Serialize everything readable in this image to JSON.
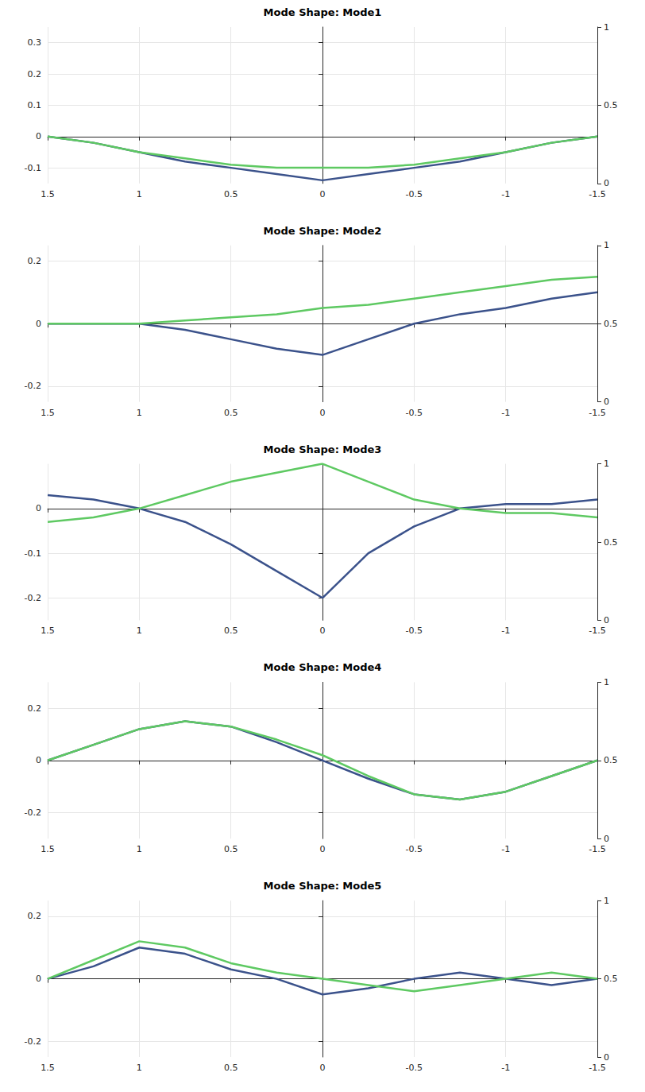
{
  "chart_data": [
    {
      "type": "line",
      "title": "Mode Shape: Mode1",
      "x": [
        1.5,
        1.25,
        1,
        0.75,
        0.5,
        0.25,
        0,
        -0.25,
        -0.5,
        -0.75,
        -1,
        -1.25,
        -1.5
      ],
      "series": [
        {
          "y": 0,
          "color": "#3b528b",
          "values": [
            0,
            -0.02,
            -0.05,
            -0.08,
            -0.1,
            -0.12,
            -0.14,
            -0.12,
            -0.1,
            -0.08,
            -0.05,
            -0.02,
            0
          ]
        },
        {
          "y": 1,
          "color": "#5ec962",
          "values": [
            0,
            -0.02,
            -0.05,
            -0.07,
            -0.09,
            -0.1,
            -0.1,
            -0.1,
            -0.09,
            -0.07,
            -0.05,
            -0.02,
            0
          ]
        }
      ],
      "xlim": [
        1.5,
        -1.5
      ],
      "xticks": [
        1.5,
        1,
        0.5,
        0,
        -0.5,
        -1,
        -1.5
      ],
      "ylim": [
        -0.15,
        0.35
      ],
      "yticks": [
        -0.1,
        0,
        0.1,
        0.2,
        0.3
      ],
      "depth_lim": [
        0,
        1
      ],
      "depth_ticks": [
        0,
        0.5,
        1
      ],
      "grid": true
    },
    {
      "type": "line",
      "title": "Mode Shape: Mode2",
      "x": [
        1.5,
        1.25,
        1,
        0.75,
        0.5,
        0.25,
        0,
        -0.25,
        -0.5,
        -0.75,
        -1,
        -1.25,
        -1.5
      ],
      "series": [
        {
          "y": 0,
          "color": "#3b528b",
          "values": [
            0,
            0,
            0,
            -0.02,
            -0.05,
            -0.08,
            -0.1,
            -0.05,
            0,
            0.03,
            0.05,
            0.08,
            0.1
          ]
        },
        {
          "y": 1,
          "color": "#5ec962",
          "values": [
            0,
            0,
            0,
            0.01,
            0.02,
            0.03,
            0.05,
            0.06,
            0.08,
            0.1,
            0.12,
            0.14,
            0.15
          ]
        }
      ],
      "xlim": [
        1.5,
        -1.5
      ],
      "xticks": [
        1.5,
        1,
        0.5,
        0,
        -0.5,
        -1,
        -1.5
      ],
      "ylim": [
        -0.25,
        0.25
      ],
      "yticks": [
        -0.2,
        0,
        0.2
      ],
      "depth_lim": [
        0,
        1
      ],
      "depth_ticks": [
        0,
        0.5,
        1
      ],
      "grid": true
    },
    {
      "type": "line",
      "title": "Mode Shape: Mode3",
      "x": [
        1.5,
        1.25,
        1,
        0.75,
        0.5,
        0.25,
        0,
        -0.25,
        -0.5,
        -0.75,
        -1,
        -1.25,
        -1.5
      ],
      "series": [
        {
          "y": 0,
          "color": "#3b528b",
          "values": [
            0.03,
            0.02,
            0,
            -0.03,
            -0.08,
            -0.14,
            -0.2,
            -0.1,
            -0.04,
            0,
            0.01,
            0.01,
            0.02
          ]
        },
        {
          "y": 1,
          "color": "#5ec962",
          "values": [
            -0.03,
            -0.02,
            0,
            0.03,
            0.06,
            0.08,
            0.1,
            0.06,
            0.02,
            0,
            -0.01,
            -0.01,
            -0.02
          ]
        }
      ],
      "xlim": [
        1.5,
        -1.5
      ],
      "xticks": [
        1.5,
        1,
        0.5,
        0,
        -0.5,
        -1,
        -1.5
      ],
      "ylim": [
        -0.25,
        0.1
      ],
      "yticks": [
        -0.2,
        -0.1,
        0
      ],
      "depth_lim": [
        0,
        1
      ],
      "depth_ticks": [
        0,
        0.5,
        1
      ],
      "grid": true
    },
    {
      "type": "line",
      "title": "Mode Shape: Mode4",
      "x": [
        1.5,
        1.25,
        1,
        0.75,
        0.5,
        0.25,
        0,
        -0.25,
        -0.5,
        -0.75,
        -1,
        -1.25,
        -1.5
      ],
      "series": [
        {
          "y": 0,
          "color": "#3b528b",
          "values": [
            0,
            0.06,
            0.12,
            0.15,
            0.13,
            0.07,
            0,
            -0.07,
            -0.13,
            -0.15,
            -0.12,
            -0.06,
            0
          ]
        },
        {
          "y": 1,
          "color": "#5ec962",
          "values": [
            0,
            0.06,
            0.12,
            0.15,
            0.13,
            0.08,
            0.02,
            -0.06,
            -0.13,
            -0.15,
            -0.12,
            -0.06,
            0
          ]
        }
      ],
      "xlim": [
        1.5,
        -1.5
      ],
      "xticks": [
        1.5,
        1,
        0.5,
        0,
        -0.5,
        -1,
        -1.5
      ],
      "ylim": [
        -0.3,
        0.3
      ],
      "yticks": [
        -0.2,
        0,
        0.2
      ],
      "depth_lim": [
        0,
        1
      ],
      "depth_ticks": [
        0,
        0.5,
        1
      ],
      "grid": true
    },
    {
      "type": "line",
      "title": "Mode Shape: Mode5",
      "x": [
        1.5,
        1.25,
        1,
        0.75,
        0.5,
        0.25,
        0,
        -0.25,
        -0.5,
        -0.75,
        -1,
        -1.25,
        -1.5
      ],
      "series": [
        {
          "y": 0,
          "color": "#3b528b",
          "values": [
            0,
            0.04,
            0.1,
            0.08,
            0.03,
            0,
            -0.05,
            -0.03,
            0,
            0.02,
            0,
            -0.02,
            0
          ]
        },
        {
          "y": 1,
          "color": "#5ec962",
          "values": [
            0,
            0.06,
            0.12,
            0.1,
            0.05,
            0.02,
            0,
            -0.02,
            -0.04,
            -0.02,
            0,
            0.02,
            0
          ]
        }
      ],
      "xlim": [
        1.5,
        -1.5
      ],
      "xticks": [
        1.5,
        1,
        0.5,
        0,
        -0.5,
        -1,
        -1.5
      ],
      "ylim": [
        -0.25,
        0.25
      ],
      "yticks": [
        -0.2,
        0,
        0.2
      ],
      "depth_lim": [
        0,
        1
      ],
      "depth_ticks": [
        0,
        0.5,
        1
      ],
      "grid": true
    }
  ]
}
